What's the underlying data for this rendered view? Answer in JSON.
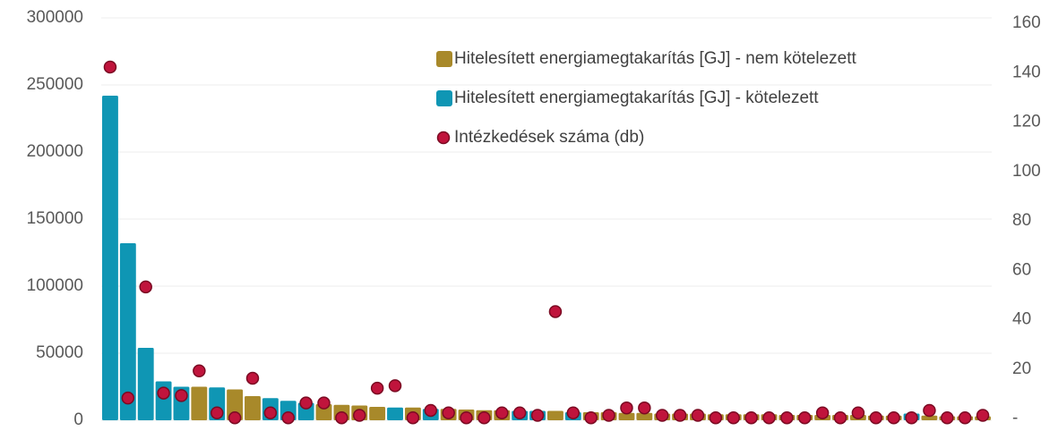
{
  "chart_data": {
    "type": "bar",
    "categories": [
      null,
      null,
      null,
      null,
      null,
      null,
      null,
      null,
      null,
      null,
      null,
      null,
      null,
      null,
      null,
      null,
      null,
      null,
      null,
      null,
      null,
      null,
      null,
      null,
      null,
      null,
      null,
      null,
      null,
      null,
      null,
      null,
      null,
      null,
      null,
      null,
      null,
      null,
      null,
      null,
      null,
      null,
      null,
      null,
      null,
      null,
      null,
      null,
      null,
      null
    ],
    "series": [
      {
        "name": "Hitelesített energiamegtakarítás [GJ] - nem kötelezett",
        "color": "#a8892a",
        "values": [
          null,
          null,
          null,
          null,
          null,
          25000,
          null,
          23000,
          18000,
          null,
          null,
          null,
          12000,
          11500,
          11000,
          10000,
          null,
          9500,
          null,
          8500,
          8000,
          7500,
          7500,
          null,
          null,
          7000,
          null,
          6000,
          6000,
          5500,
          5500,
          5000,
          5000,
          5000,
          4500,
          4500,
          4500,
          4500,
          4000,
          4000,
          4000,
          4000,
          4000,
          3500,
          3500,
          null,
          3500,
          3000,
          3000,
          3000
        ]
      },
      {
        "name": "Hitelesített energiamegtakarítás [GJ] - kötelezett",
        "color": "#0f96b4",
        "values": [
          242000,
          132000,
          54000,
          29000,
          25000,
          null,
          24500,
          null,
          null,
          16500,
          14500,
          13000,
          null,
          null,
          null,
          null,
          9500,
          null,
          8500,
          null,
          null,
          null,
          null,
          7000,
          7000,
          null,
          6000,
          null,
          null,
          null,
          null,
          null,
          null,
          null,
          null,
          null,
          null,
          null,
          null,
          null,
          null,
          null,
          null,
          null,
          null,
          5000,
          null,
          null,
          null,
          null
        ]
      },
      {
        "name": "Intézkedések száma (db)",
        "type": "scatter",
        "axis": "y2",
        "color": "#c0143c",
        "values": [
          143,
          9,
          54,
          11,
          10,
          20,
          3,
          1,
          17,
          3,
          1,
          7,
          7,
          1,
          2,
          13,
          14,
          1,
          4,
          3,
          1,
          1,
          3,
          3,
          2,
          44,
          3,
          1,
          2,
          5,
          5,
          2,
          2,
          2,
          1,
          1,
          1,
          1,
          1,
          1,
          3,
          1,
          3,
          1,
          1,
          1,
          4,
          1,
          1,
          2
        ]
      }
    ],
    "ylim": [
      0,
      300000
    ],
    "yticks": [
      0,
      50000,
      100000,
      150000,
      200000,
      250000,
      300000
    ],
    "y2lim": [
      0,
      160
    ],
    "y2ticks": [
      {
        "value": 0,
        "label": "-"
      },
      20,
      40,
      60,
      80,
      100,
      120,
      140,
      160
    ],
    "grid": true,
    "legend": "top-right"
  }
}
